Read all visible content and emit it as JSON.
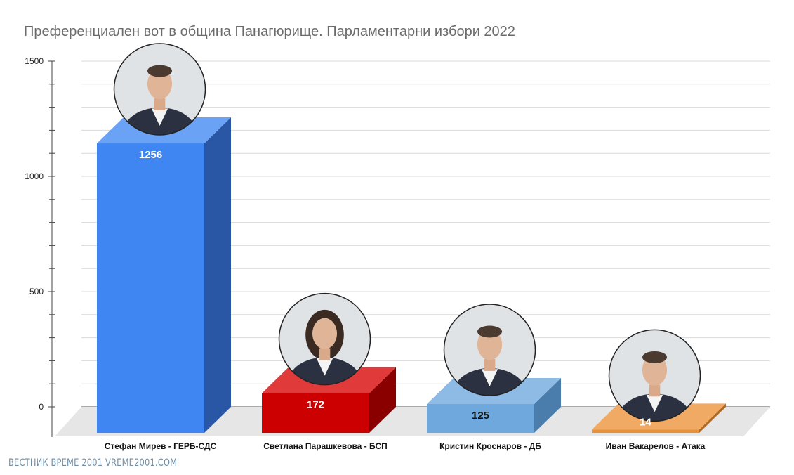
{
  "chart_data": {
    "type": "bar",
    "title": "Преференциален вот в община Панагюрище. Парламентарни избори 2022",
    "categories": [
      "Стефан Мирев - ГЕРБ-СДС",
      "Светлана Парашкевова - БСП",
      "Кристин Кроснаров - ДБ",
      "Иван Вакарелов - Атака"
    ],
    "values": [
      1256,
      172,
      125,
      14
    ],
    "value_labels": [
      "1256",
      "172",
      "125",
      "14"
    ],
    "ylim": [
      0,
      1500
    ],
    "y_ticks": [
      0,
      500,
      1000,
      1500
    ],
    "y_tick_labels": [
      "0",
      "500",
      "1000",
      "1500"
    ],
    "grid": true,
    "style": "3d-columns",
    "bar_colors": [
      {
        "front": "#3f86f3",
        "top": "#6aa2f6",
        "side": "#2a56a6",
        "label": "#ffffff"
      },
      {
        "front": "#cc0000",
        "top": "#e03a3a",
        "side": "#8a0000",
        "label": "#ffffff"
      },
      {
        "front": "#6fa8dc",
        "top": "#8dbbe5",
        "side": "#4a7cac",
        "label": "#111111"
      },
      {
        "front": "#e69138",
        "top": "#f0aa63",
        "side": "#b36a1e",
        "label": "#ffffff"
      }
    ],
    "portrait_icons": [
      "man-portrait-icon",
      "woman-portrait-icon",
      "man-portrait-icon",
      "man-portrait-icon"
    ]
  },
  "watermark": "ВЕСТНИК ВРЕМЕ 2001  VREME2001.COM"
}
